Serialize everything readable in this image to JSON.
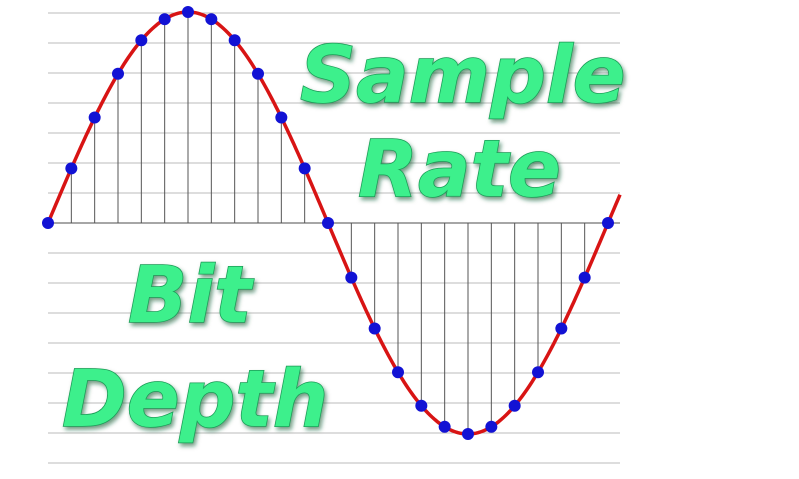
{
  "labels": {
    "sample": "Sample",
    "rate": "Rate",
    "bit": "Bit",
    "depth": "Depth"
  }
}
